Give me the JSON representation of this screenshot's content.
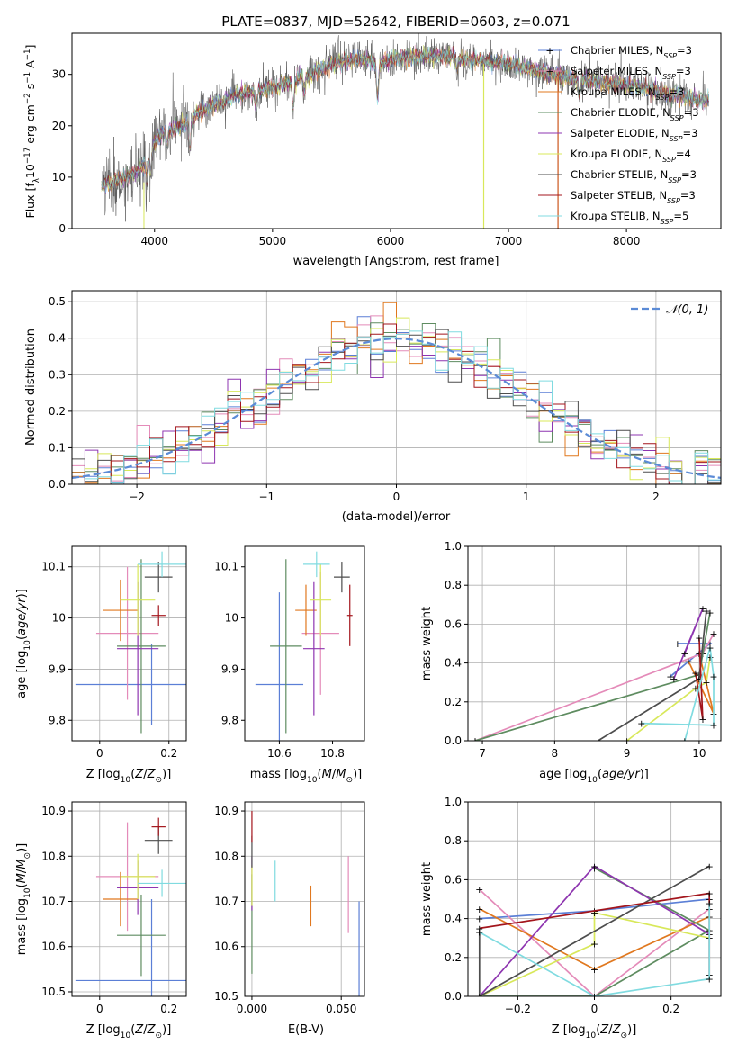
{
  "figure_title": "PLATE=0837, MJD=52642, FIBERID=0603, z=0.071",
  "colors": {
    "Chabrier MILES": "#5b7fd6",
    "Salpeter MILES": "#e48bb9",
    "Kroupa MILES": "#e0781f",
    "Chabrier ELODIE": "#5e8c60",
    "Salpeter ELODIE": "#8e35b0",
    "Kroupa ELODIE": "#d8e85a",
    "Chabrier STELIB": "#4d4d4d",
    "Salpeter STELIB": "#a3151c",
    "Kroupa STELIB": "#80dbe0"
  },
  "chart_data": [
    {
      "id": "spectrum",
      "type": "line",
      "xlabel": "wavelength [Angstrom, rest frame]",
      "ylabel": "Flux [f_λ 10^-17 erg cm^-2 s^-1 A^-1]",
      "xlim": [
        3300,
        8800
      ],
      "ylim": [
        0,
        38
      ],
      "xticks": [
        4000,
        5000,
        6000,
        7000,
        8000
      ],
      "yticks": [
        0,
        10,
        20,
        30
      ],
      "legend_position": "top-right",
      "legend": [
        {
          "model": "Chabrier MILES",
          "n_ssp": "3"
        },
        {
          "model": "Salpeter MILES",
          "n_ssp": "3"
        },
        {
          "model": "Kroupa MILES",
          "n_ssp": "3"
        },
        {
          "model": "Chabrier ELODIE",
          "n_ssp": "3"
        },
        {
          "model": "Salpeter ELODIE",
          "n_ssp": "3"
        },
        {
          "model": "Kroupa ELODIE",
          "n_ssp": "4"
        },
        {
          "model": "Chabrier STELIB",
          "n_ssp": "3"
        },
        {
          "model": "Salpeter STELIB",
          "n_ssp": "3"
        },
        {
          "model": "Kroupa STELIB",
          "n_ssp": "5"
        }
      ],
      "continuum": [
        [
          3550,
          8
        ],
        [
          3650,
          9
        ],
        [
          3800,
          10.5
        ],
        [
          3900,
          12
        ],
        [
          3950,
          14
        ],
        [
          4000,
          17
        ],
        [
          4100,
          19
        ],
        [
          4200,
          19.5
        ],
        [
          4300,
          21
        ],
        [
          4400,
          23
        ],
        [
          4500,
          24
        ],
        [
          4600,
          25
        ],
        [
          4700,
          26
        ],
        [
          4800,
          26.5
        ],
        [
          4900,
          27
        ],
        [
          5000,
          27.5
        ],
        [
          5100,
          28
        ],
        [
          5200,
          29
        ],
        [
          5300,
          30
        ],
        [
          5400,
          31
        ],
        [
          5500,
          32
        ],
        [
          5600,
          32.5
        ],
        [
          5700,
          33
        ],
        [
          5800,
          33
        ],
        [
          5900,
          32
        ],
        [
          6000,
          33
        ],
        [
          6200,
          33.5
        ],
        [
          6400,
          33.5
        ],
        [
          6600,
          33
        ],
        [
          6800,
          32.5
        ],
        [
          7000,
          32
        ],
        [
          7200,
          31
        ],
        [
          7400,
          30
        ],
        [
          7600,
          29
        ],
        [
          7800,
          28.5
        ],
        [
          8000,
          28
        ],
        [
          8200,
          27
        ],
        [
          8400,
          26
        ],
        [
          8600,
          25
        ],
        [
          8700,
          25
        ]
      ],
      "absorption_lines": [
        [
          3934,
          4
        ],
        [
          3968,
          4
        ],
        [
          4102,
          3
        ],
        [
          4300,
          5
        ],
        [
          4861,
          3
        ],
        [
          5175,
          5
        ],
        [
          5270,
          3
        ],
        [
          5890,
          7
        ],
        [
          6563,
          2
        ],
        [
          7600,
          3
        ]
      ]
    },
    {
      "id": "residual_hist",
      "type": "histogram",
      "xlabel": "(data-model)/error",
      "ylabel": "Normed distribution",
      "xlim": [
        -2.5,
        2.5
      ],
      "ylim": [
        0,
        0.53
      ],
      "xticks": [
        -2,
        -1,
        0,
        1,
        2
      ],
      "yticks": [
        0.0,
        0.1,
        0.2,
        0.3,
        0.4,
        0.5
      ],
      "bin_width": 0.1,
      "reference_curve": "𝒩(0, 1)",
      "legend_position": "top-right"
    },
    {
      "id": "age_vs_Z",
      "type": "errorbar",
      "xlabel": "Z [log10(Z/Z⊙)]",
      "ylabel": "age [log10(age/yr)]",
      "xlim": [
        -0.08,
        0.25
      ],
      "ylim": [
        9.76,
        10.14
      ],
      "xticks": [
        0.0,
        0.2
      ],
      "yticks": [
        9.8,
        9.9,
        10.0,
        10.1
      ],
      "points": [
        {
          "model": "Chabrier MILES",
          "x": 0.15,
          "xerr": 0.22,
          "y": 9.87,
          "yerr": 0.08
        },
        {
          "model": "Salpeter MILES",
          "x": 0.08,
          "xerr": 0.09,
          "y": 9.97,
          "yerr": 0.13
        },
        {
          "model": "Kroupa MILES",
          "x": 0.06,
          "xerr": 0.05,
          "y": 10.015,
          "yerr": 0.06
        },
        {
          "model": "Chabrier ELODIE",
          "x": 0.12,
          "xerr": 0.07,
          "y": 9.945,
          "yerr": 0.17
        },
        {
          "model": "Salpeter ELODIE",
          "x": 0.11,
          "xerr": 0.06,
          "y": 9.94,
          "yerr": 0.13
        },
        {
          "model": "Kroupa ELODIE",
          "x": 0.11,
          "xerr": 0.05,
          "y": 10.035,
          "yerr": 0.07
        },
        {
          "model": "Chabrier STELIB",
          "x": 0.17,
          "xerr": 0.04,
          "y": 10.08,
          "yerr": 0.03
        },
        {
          "model": "Salpeter STELIB",
          "x": 0.17,
          "xerr": 0.02,
          "y": 10.005,
          "yerr": 0.02
        },
        {
          "model": "Kroupa STELIB",
          "x": 0.18,
          "xerr": 0.07,
          "y": 10.105,
          "yerr": 0.025
        }
      ]
    },
    {
      "id": "age_vs_mass",
      "type": "errorbar",
      "xlabel": "mass [log10(M/M⊙)]",
      "ylabel": "",
      "xlim": [
        10.47,
        10.92
      ],
      "ylim": [
        9.76,
        10.14
      ],
      "xticks": [
        10.6,
        10.8
      ],
      "yticks": [
        9.8,
        9.9,
        10.0,
        10.1
      ],
      "points": [
        {
          "model": "Chabrier MILES",
          "x": 10.6,
          "xerr": 0.09,
          "y": 9.87,
          "yerr": 0.18
        },
        {
          "model": "Salpeter MILES",
          "x": 10.755,
          "xerr": 0.07,
          "y": 9.97,
          "yerr": 0.12
        },
        {
          "model": "Kroupa MILES",
          "x": 10.7,
          "xerr": 0.04,
          "y": 10.015,
          "yerr": 0.05
        },
        {
          "model": "Chabrier ELODIE",
          "x": 10.625,
          "xerr": 0.06,
          "y": 9.945,
          "yerr": 0.17
        },
        {
          "model": "Salpeter ELODIE",
          "x": 10.73,
          "xerr": 0.04,
          "y": 9.94,
          "yerr": 0.13
        },
        {
          "model": "Kroupa ELODIE",
          "x": 10.755,
          "xerr": 0.04,
          "y": 10.035,
          "yerr": 0.07
        },
        {
          "model": "Chabrier STELIB",
          "x": 10.835,
          "xerr": 0.03,
          "y": 10.08,
          "yerr": 0.03
        },
        {
          "model": "Salpeter STELIB",
          "x": 10.865,
          "xerr": 0.01,
          "y": 10.005,
          "yerr": 0.06
        },
        {
          "model": "Kroupa STELIB",
          "x": 10.74,
          "xerr": 0.05,
          "y": 10.105,
          "yerr": 0.025
        }
      ]
    },
    {
      "id": "weight_vs_age",
      "type": "line",
      "xlabel": "age [log10(age/yr)]",
      "ylabel": "mass weight",
      "xlim": [
        6.8,
        10.3
      ],
      "ylim": [
        0,
        1
      ],
      "xticks": [
        7,
        8,
        9,
        10
      ],
      "yticks": [
        0.0,
        0.2,
        0.4,
        0.6,
        0.8,
        1.0
      ],
      "series": [
        {
          "model": "Chabrier MILES",
          "points": [
            [
              9.7,
              0.5
            ],
            [
              10.15,
              0.5
            ],
            [
              9.6,
              0.33
            ]
          ]
        },
        {
          "model": "Salpeter MILES",
          "points": [
            [
              6.9,
              0.0
            ],
            [
              10.05,
              0.45
            ],
            [
              10.2,
              0.55
            ]
          ]
        },
        {
          "model": "Kroupa MILES",
          "points": [
            [
              9.85,
              0.41
            ],
            [
              10.2,
              0.14
            ],
            [
              10.0,
              0.45
            ]
          ]
        },
        {
          "model": "Chabrier ELODIE",
          "points": [
            [
              6.9,
              0.0
            ],
            [
              10.0,
              0.34
            ],
            [
              10.15,
              0.66
            ]
          ]
        },
        {
          "model": "Salpeter ELODIE",
          "points": [
            [
              9.65,
              0.32
            ],
            [
              10.05,
              0.68
            ],
            [
              9.8,
              0.45
            ]
          ]
        },
        {
          "model": "Kroupa ELODIE",
          "points": [
            [
              9.0,
              0.0
            ],
            [
              9.95,
              0.27
            ],
            [
              10.1,
              0.3
            ],
            [
              10.15,
              0.43
            ]
          ]
        },
        {
          "model": "Chabrier STELIB",
          "points": [
            [
              8.6,
              0.0
            ],
            [
              10.0,
              0.32
            ],
            [
              10.1,
              0.67
            ]
          ]
        },
        {
          "model": "Salpeter STELIB",
          "points": [
            [
              9.95,
              0.35
            ],
            [
              10.05,
              0.11
            ],
            [
              10.0,
              0.53
            ]
          ]
        },
        {
          "model": "Kroupa STELIB",
          "points": [
            [
              9.2,
              0.09
            ],
            [
              10.2,
              0.08
            ],
            [
              10.2,
              0.33
            ],
            [
              10.15,
              0.48
            ],
            [
              9.8,
              0.0
            ]
          ]
        }
      ]
    },
    {
      "id": "mass_vs_Z",
      "type": "errorbar",
      "xlabel": "Z [log10(Z/Z⊙)]",
      "ylabel": "mass [log10(M/M⊙)]",
      "xlim": [
        -0.08,
        0.25
      ],
      "ylim": [
        10.49,
        10.92
      ],
      "xticks": [
        0.0,
        0.2
      ],
      "yticks": [
        10.5,
        10.6,
        10.7,
        10.8,
        10.9
      ],
      "points": [
        {
          "model": "Chabrier MILES",
          "x": 0.15,
          "xerr": 0.22,
          "y": 10.525,
          "yerr": 0.18
        },
        {
          "model": "Salpeter MILES",
          "x": 0.08,
          "xerr": 0.09,
          "y": 10.755,
          "yerr": 0.12
        },
        {
          "model": "Kroupa MILES",
          "x": 0.06,
          "xerr": 0.05,
          "y": 10.705,
          "yerr": 0.06
        },
        {
          "model": "Chabrier ELODIE",
          "x": 0.12,
          "xerr": 0.07,
          "y": 10.625,
          "yerr": 0.09
        },
        {
          "model": "Salpeter ELODIE",
          "x": 0.11,
          "xerr": 0.06,
          "y": 10.73,
          "yerr": 0.06
        },
        {
          "model": "Kroupa ELODIE",
          "x": 0.11,
          "xerr": 0.05,
          "y": 10.755,
          "yerr": 0.05
        },
        {
          "model": "Chabrier STELIB",
          "x": 0.17,
          "xerr": 0.04,
          "y": 10.835,
          "yerr": 0.03
        },
        {
          "model": "Salpeter STELIB",
          "x": 0.17,
          "xerr": 0.02,
          "y": 10.865,
          "yerr": 0.02
        },
        {
          "model": "Kroupa STELIB",
          "x": 0.18,
          "xerr": 0.07,
          "y": 10.74,
          "yerr": 0.03
        }
      ]
    },
    {
      "id": "mass_vs_ebv",
      "type": "errorbar",
      "xlabel": "E(B-V)",
      "ylabel": "",
      "xlim": [
        -0.004,
        0.063
      ],
      "ylim": [
        10.49,
        10.92
      ],
      "xticks": [
        0.0,
        0.05
      ],
      "xtick_labels": [
        "0.000",
        "0.050"
      ],
      "yticks": [
        10.6,
        10.7,
        10.8,
        10.9
      ],
      "ytick_labels": [
        "10.6",
        "10.7",
        "10.8",
        "10.9"
      ],
      "points": [
        {
          "model": "Chabrier MILES",
          "x": 0.06,
          "xerr": 0,
          "y": 10.59,
          "yerr": 0.11
        },
        {
          "model": "Salpeter MILES",
          "x": 0.054,
          "xerr": 0,
          "y": 10.715,
          "yerr": 0.085
        },
        {
          "model": "Kroupa MILES",
          "x": 0.033,
          "xerr": 0,
          "y": 10.69,
          "yerr": 0.045
        },
        {
          "model": "Chabrier ELODIE",
          "x": 0.0,
          "xerr": 0,
          "y": 10.65,
          "yerr": 0.11
        },
        {
          "model": "Salpeter ELODIE",
          "x": 0.0,
          "xerr": 0,
          "y": 10.74,
          "yerr": 0.06
        },
        {
          "model": "Kroupa ELODIE",
          "x": 0.0,
          "xerr": 0,
          "y": 10.735,
          "yerr": 0.045
        },
        {
          "model": "Chabrier STELIB",
          "x": 0.0,
          "xerr": 0,
          "y": 10.81,
          "yerr": 0.035
        },
        {
          "model": "Salpeter STELIB",
          "x": 0.0,
          "xerr": 0,
          "y": 10.865,
          "yerr": 0.035
        },
        {
          "model": "Kroupa STELIB",
          "x": 0.013,
          "xerr": 0,
          "y": 10.745,
          "yerr": 0.045
        }
      ]
    },
    {
      "id": "weight_vs_Z",
      "type": "line",
      "xlabel": "Z [log10(Z/Z⊙)]",
      "ylabel": "mass weight",
      "xlim": [
        -0.33,
        0.33
      ],
      "ylim": [
        0,
        1
      ],
      "xticks": [
        -0.2,
        0.0,
        0.2
      ],
      "yticks": [
        0.0,
        0.2,
        0.4,
        0.6,
        0.8,
        1.0
      ],
      "series": [
        {
          "model": "Chabrier MILES",
          "points": [
            [
              -0.3,
              0.4
            ],
            [
              0.0,
              0.44
            ],
            [
              0.3,
              0.5
            ]
          ]
        },
        {
          "model": "Salpeter MILES",
          "points": [
            [
              -0.3,
              0.55
            ],
            [
              0.0,
              0.0
            ],
            [
              0.3,
              0.45
            ]
          ]
        },
        {
          "model": "Kroupa MILES",
          "points": [
            [
              -0.3,
              0.45
            ],
            [
              0.0,
              0.14
            ],
            [
              0.3,
              0.41
            ]
          ]
        },
        {
          "model": "Chabrier ELODIE",
          "points": [
            [
              -0.3,
              0.0
            ],
            [
              0.0,
              0.0
            ],
            [
              0.3,
              0.34
            ],
            [
              0.0,
              0.66
            ]
          ]
        },
        {
          "model": "Salpeter ELODIE",
          "points": [
            [
              -0.3,
              0.0
            ],
            [
              0.0,
              0.67
            ],
            [
              0.3,
              0.32
            ]
          ]
        },
        {
          "model": "Kroupa ELODIE",
          "points": [
            [
              -0.3,
              0.0
            ],
            [
              0.0,
              0.27
            ],
            [
              0.0,
              0.43
            ],
            [
              0.3,
              0.3
            ]
          ]
        },
        {
          "model": "Chabrier STELIB",
          "points": [
            [
              -0.3,
              0.33
            ],
            [
              -0.3,
              0.0
            ],
            [
              0.3,
              0.67
            ]
          ]
        },
        {
          "model": "Salpeter STELIB",
          "points": [
            [
              -0.3,
              0.35
            ],
            [
              0.3,
              0.53
            ],
            [
              0.3,
              0.11
            ]
          ]
        },
        {
          "model": "Kroupa STELIB",
          "points": [
            [
              -0.3,
              0.33
            ],
            [
              0.0,
              0.0
            ],
            [
              0.3,
              0.09
            ],
            [
              0.3,
              0.48
            ]
          ]
        }
      ]
    }
  ]
}
